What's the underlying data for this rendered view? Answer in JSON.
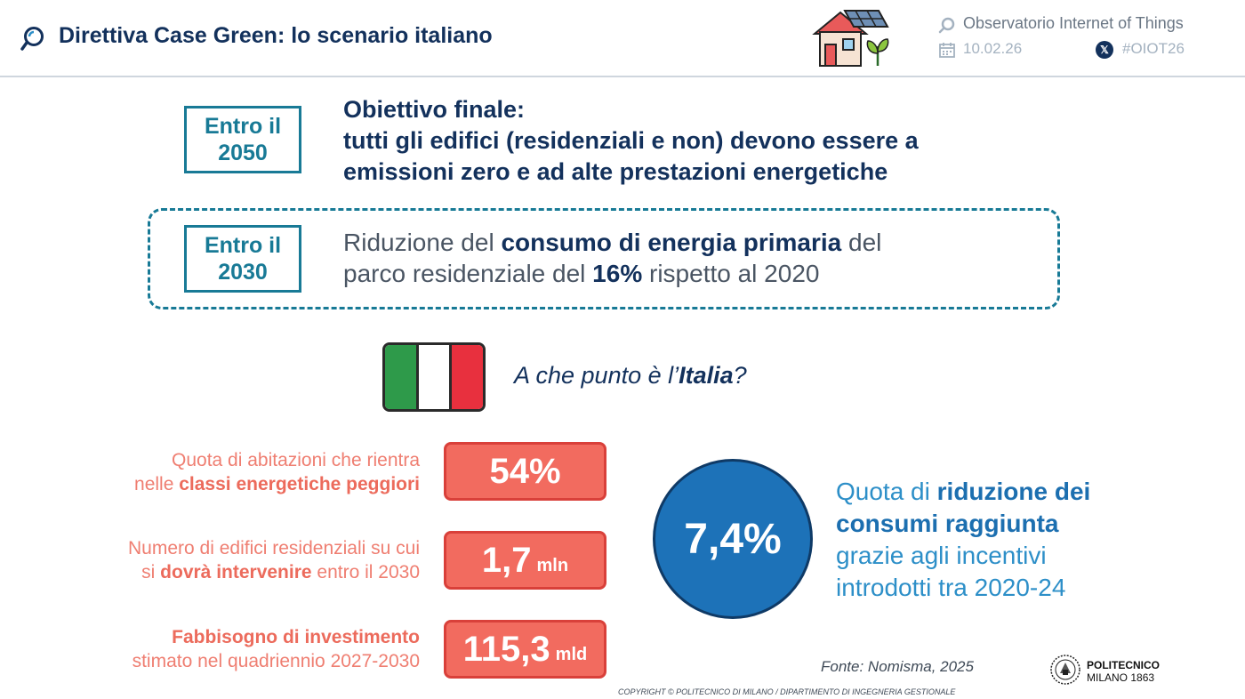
{
  "header": {
    "title": "Direttiva Case Green: lo scenario italiano",
    "organization": "Observatorio Internet of Things",
    "date": "10.02.26",
    "hashtag": "#OIOT26"
  },
  "goal_2050": {
    "year_line1": "Entro il",
    "year_line2": "2050",
    "line1": "Obiettivo finale:",
    "line2": "tutti gli edifici (residenziali e non) devono essere a",
    "line3": "emissioni zero e ad alte prestazioni energetiche"
  },
  "goal_2030": {
    "year_line1": "Entro il",
    "year_line2": "2030",
    "t1": "Riduzione del ",
    "t1_bold": "consumo di energia primaria",
    "t1_end": " del",
    "t2": "parco residenziale del ",
    "t2_bold": "16%",
    "t2_end": " rispetto al 2020"
  },
  "italy": {
    "q_start": "A che punto è l’",
    "q_bold": "Italia",
    "q_end": "?",
    "flag_colors": [
      "#2e9a4a",
      "#ffffff",
      "#e8303e"
    ]
  },
  "stats": [
    {
      "line1": "Quota di abitazioni che rientra",
      "line2_start": "nelle ",
      "line2_bold": "classi energetiche peggiori",
      "line2_end": "",
      "value": "54%",
      "unit": ""
    },
    {
      "line1": "Numero di edifici residenziali su cui",
      "line2_start": "si ",
      "line2_bold": "dovrà intervenire",
      "line2_end": " entro il 2030",
      "value": "1,7",
      "unit": "mln"
    },
    {
      "line1_bold": "Fabbisogno di investimento",
      "line2": "stimato nel quadriennio 2027-2030",
      "value": "115,3",
      "unit": "mld"
    }
  ],
  "reduction": {
    "value": "7,4%",
    "l1_start": "Quota di ",
    "l1_bold": "riduzione dei",
    "l2_bold": "consumi raggiunta",
    "l3": "grazie agli incentivi",
    "l4": "introdotti tra 2020-24"
  },
  "footer": {
    "source": "Fonte: Nomisma, 2025",
    "poli_name": "POLITECNICO",
    "poli_sub": "MILANO 1863",
    "copyright": "COPYRIGHT © POLITECNICO DI MILANO / DIPARTIMENTO DI INGEGNERIA GESTIONALE"
  }
}
